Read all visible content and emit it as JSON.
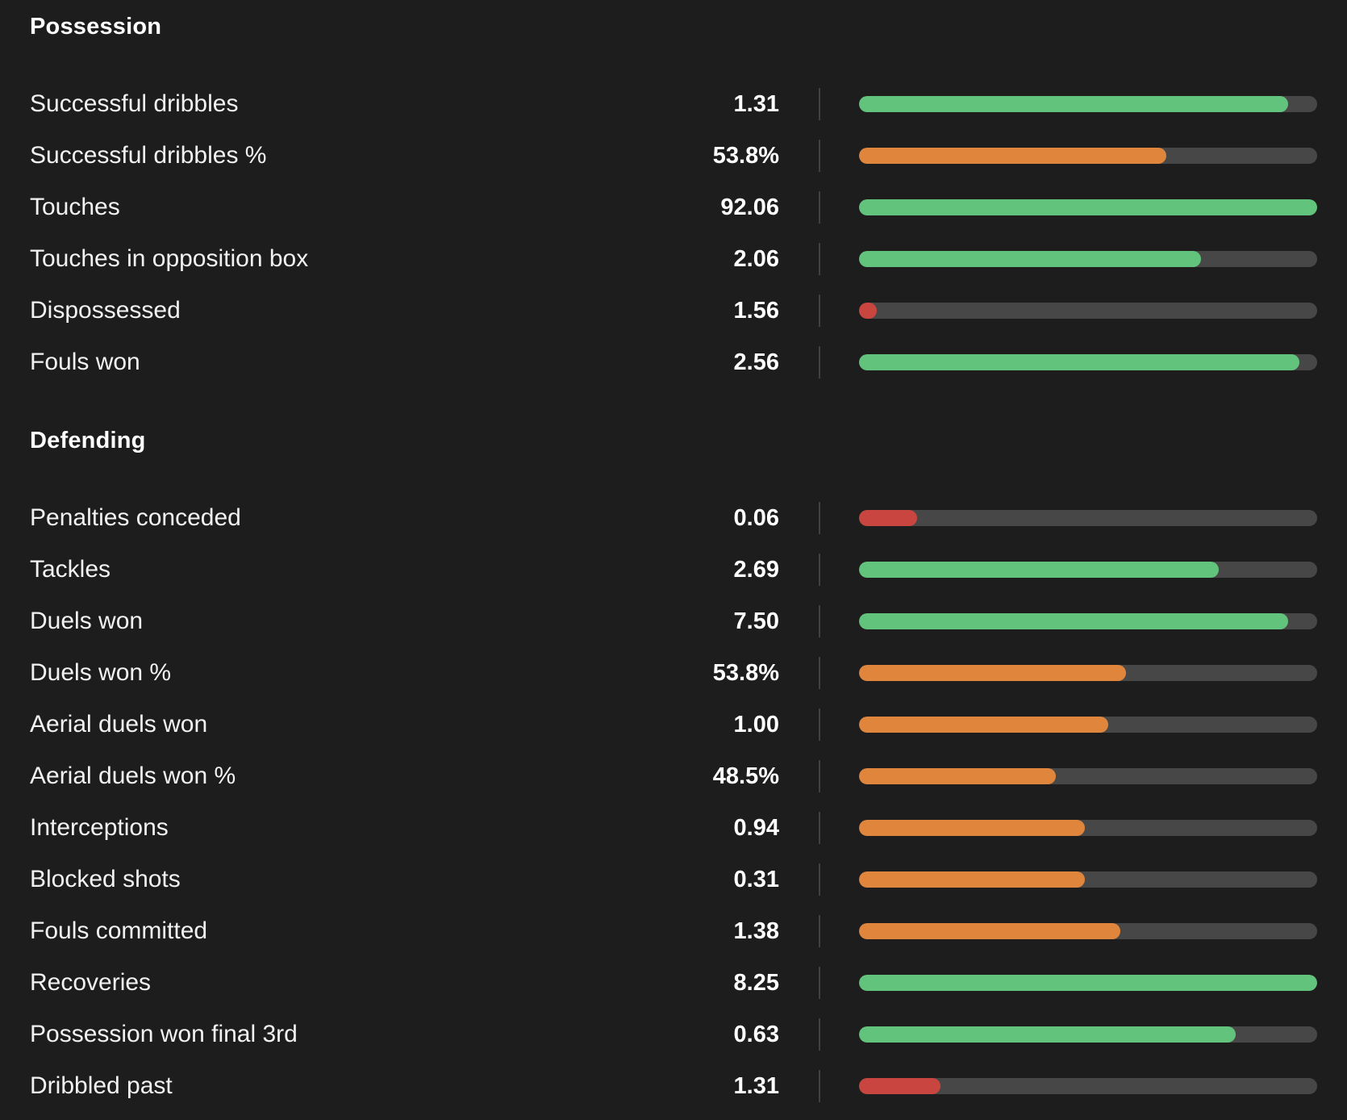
{
  "colors": {
    "background": "#1d1d1d",
    "track": "#474747",
    "good": "#62c37c",
    "average": "#df853c",
    "poor": "#c94540"
  },
  "sections": [
    {
      "title": "Possession",
      "rows": [
        {
          "label": "Successful dribbles",
          "value": "1.31",
          "fill": 0.936,
          "rating": "good"
        },
        {
          "label": "Successful dribbles %",
          "value": "53.8%",
          "fill": 0.671,
          "rating": "average"
        },
        {
          "label": "Touches",
          "value": "92.06",
          "fill": 1.0,
          "rating": "good"
        },
        {
          "label": "Touches in opposition box",
          "value": "2.06",
          "fill": 0.747,
          "rating": "good"
        },
        {
          "label": "Dispossessed",
          "value": "1.56",
          "fill": 0.039,
          "rating": "poor"
        },
        {
          "label": "Fouls won",
          "value": "2.56",
          "fill": 0.961,
          "rating": "good"
        }
      ]
    },
    {
      "title": "Defending",
      "rows": [
        {
          "label": "Penalties conceded",
          "value": "0.06",
          "fill": 0.127,
          "rating": "poor"
        },
        {
          "label": "Tackles",
          "value": "2.69",
          "fill": 0.785,
          "rating": "good"
        },
        {
          "label": "Duels won",
          "value": "7.50",
          "fill": 0.936,
          "rating": "good"
        },
        {
          "label": "Duels won %",
          "value": "53.8%",
          "fill": 0.583,
          "rating": "average"
        },
        {
          "label": "Aerial duels won",
          "value": "1.00",
          "fill": 0.544,
          "rating": "average"
        },
        {
          "label": "Aerial duels won %",
          "value": "48.5%",
          "fill": 0.43,
          "rating": "average"
        },
        {
          "label": "Interceptions",
          "value": "0.94",
          "fill": 0.493,
          "rating": "average"
        },
        {
          "label": "Blocked shots",
          "value": "0.31",
          "fill": 0.493,
          "rating": "average"
        },
        {
          "label": "Fouls committed",
          "value": "1.38",
          "fill": 0.571,
          "rating": "average"
        },
        {
          "label": "Recoveries",
          "value": "8.25",
          "fill": 1.0,
          "rating": "good"
        },
        {
          "label": "Possession won final 3rd",
          "value": "0.63",
          "fill": 0.822,
          "rating": "good"
        },
        {
          "label": "Dribbled past",
          "value": "1.31",
          "fill": 0.178,
          "rating": "poor"
        }
      ]
    }
  ]
}
